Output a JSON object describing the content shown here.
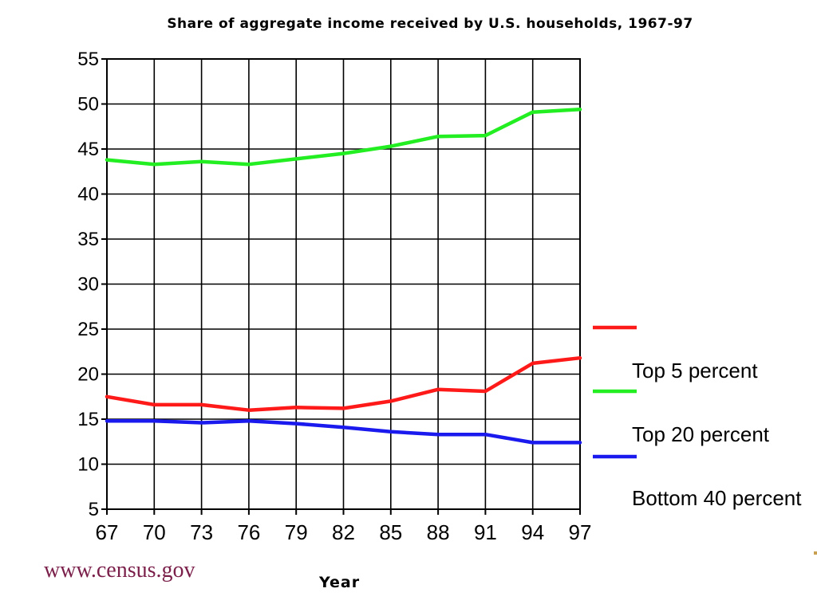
{
  "chart_data": {
    "type": "line",
    "title": "Share of aggregate income received by U.S. households, 1967-97",
    "xlabel": "Year",
    "ylabel": "",
    "x": [
      "67",
      "70",
      "73",
      "76",
      "79",
      "82",
      "85",
      "88",
      "91",
      "94",
      "97"
    ],
    "ylim": [
      5,
      55
    ],
    "yticks": [
      55,
      50,
      45,
      40,
      35,
      30,
      25,
      20,
      15,
      10,
      5
    ],
    "grid": true,
    "legend_position": "right",
    "legend_entries": [
      "Top 5 percent",
      "Top 20 percent",
      "Bottom 40 percent"
    ],
    "series": [
      {
        "name": "Top 5 percent",
        "color": "#ff1a1a",
        "values": [
          17.5,
          16.6,
          16.6,
          16.0,
          16.3,
          16.2,
          17.0,
          18.3,
          18.1,
          21.2,
          21.8
        ]
      },
      {
        "name": "Top 20 percent",
        "color": "#22ee22",
        "values": [
          43.8,
          43.3,
          43.6,
          43.3,
          43.9,
          44.5,
          45.3,
          46.4,
          46.5,
          49.1,
          49.4
        ]
      },
      {
        "name": "Bottom 40 percent",
        "color": "#1a1aee",
        "values": [
          14.8,
          14.8,
          14.6,
          14.8,
          14.5,
          14.1,
          13.6,
          13.3,
          13.3,
          12.4,
          12.4
        ]
      }
    ]
  },
  "footer": {
    "url": "www.census.gov"
  }
}
